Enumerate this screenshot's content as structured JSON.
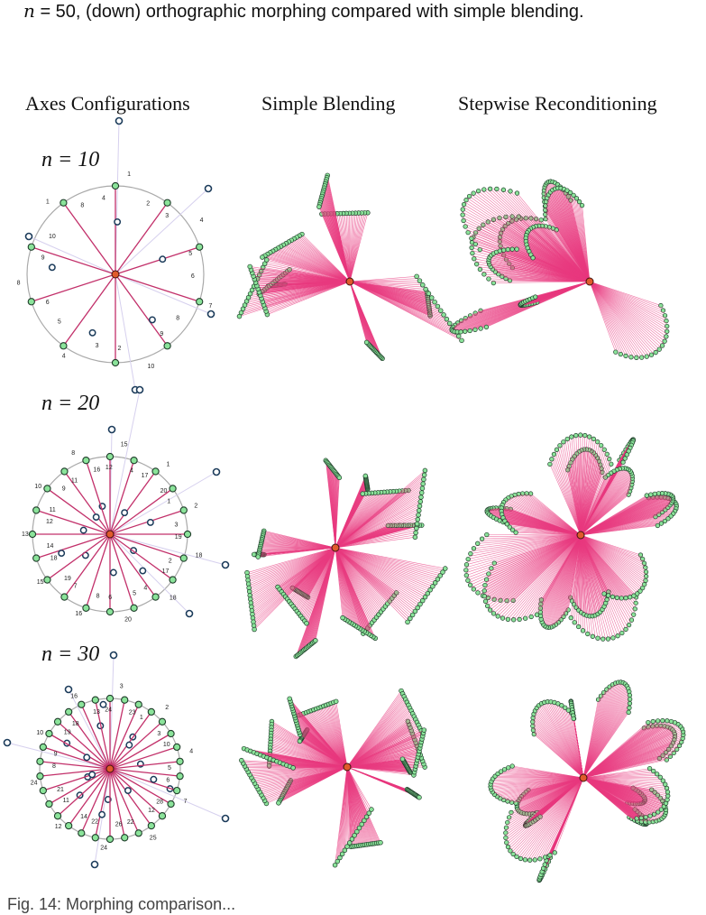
{
  "caption_top": {
    "var": "n",
    "rest": " = 50, (down) orthographic morphing compared with simple blending."
  },
  "columns": [
    {
      "title": "Axes Configurations"
    },
    {
      "title": "Simple Blending"
    },
    {
      "title": "Stepwise Reconditioning"
    }
  ],
  "rows": [
    {
      "label": "n = 10",
      "n": 10
    },
    {
      "label": "n = 20",
      "n": 20
    },
    {
      "label": "n = 30",
      "n": 30
    }
  ],
  "axis_labels": {
    "row1": [
      "1",
      "2",
      "3",
      "4",
      "5",
      "6",
      "7",
      "8",
      "9",
      "10",
      "2",
      "3",
      "4",
      "5",
      "6",
      "8",
      "9",
      "10",
      "1",
      "8",
      "4"
    ],
    "row2": [
      "15",
      "4",
      "17",
      "1",
      "20",
      "1",
      "2",
      "3",
      "19",
      "18",
      "2",
      "17",
      "18",
      "4",
      "5",
      "20",
      "6",
      "8",
      "16",
      "7",
      "19",
      "15",
      "18",
      "14",
      "13",
      "12",
      "11",
      "10",
      "9",
      "11",
      "8",
      "16",
      "12"
    ],
    "row3": [
      "3",
      "23",
      "1",
      "2",
      "3",
      "10",
      "4",
      "5",
      "6",
      "7",
      "28",
      "12",
      "25",
      "22",
      "26",
      "24",
      "22",
      "14",
      "12",
      "11",
      "21",
      "24",
      "8",
      "9",
      "10",
      "19",
      "18",
      "16",
      "13",
      "24"
    ]
  },
  "caption_bottom": "Fig. 14: Morphing comparison..."
}
